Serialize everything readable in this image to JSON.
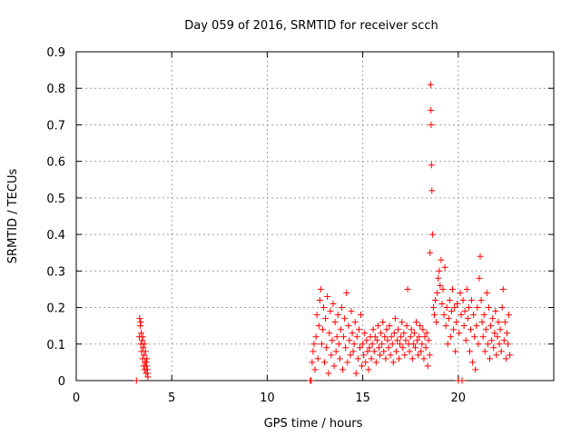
{
  "chart_data": {
    "type": "scatter",
    "title": "Day 059 of 2016, SRMTID for receiver scch",
    "xlabel": "GPS time / hours",
    "ylabel": "SRMTID / TECUs",
    "xlim": [
      0,
      25
    ],
    "ylim": [
      0,
      0.9
    ],
    "xticks": [
      "0",
      "5",
      "10",
      "15",
      "20"
    ],
    "yticks": [
      "0",
      "0.1",
      "0.2",
      "0.3",
      "0.4",
      "0.5",
      "0.6",
      "0.7",
      "0.8",
      "0.9"
    ],
    "grid": true,
    "marker": "+",
    "series_color": "#ff0000",
    "series": [
      {
        "name": "SRMTID",
        "x": [
          3.15,
          3.3,
          3.32,
          3.35,
          3.38,
          3.4,
          3.42,
          3.45,
          3.47,
          3.5,
          3.52,
          3.55,
          3.58,
          3.6,
          3.62,
          3.65,
          3.68,
          3.7,
          3.72,
          3.75,
          3.38,
          3.48,
          3.57,
          3.66,
          3.73,
          12.25,
          12.3,
          12.35,
          12.4,
          12.45,
          12.5,
          12.55,
          12.6,
          12.65,
          12.7,
          12.75,
          12.8,
          12.85,
          12.9,
          12.95,
          13.0,
          13.05,
          13.1,
          13.15,
          13.2,
          13.25,
          13.3,
          13.35,
          13.4,
          13.45,
          13.5,
          13.55,
          13.6,
          13.65,
          13.7,
          13.75,
          13.8,
          13.85,
          13.9,
          13.95,
          14.0,
          14.05,
          14.1,
          14.15,
          14.2,
          14.25,
          14.3,
          14.35,
          14.4,
          14.45,
          14.5,
          14.55,
          14.6,
          14.65,
          14.7,
          14.75,
          14.8,
          14.85,
          14.9,
          14.95,
          15.0,
          15.05,
          15.1,
          15.15,
          15.2,
          15.25,
          15.3,
          15.35,
          15.4,
          15.45,
          15.5,
          15.55,
          15.6,
          15.65,
          15.7,
          15.75,
          15.8,
          15.85,
          15.9,
          15.95,
          16.0,
          16.05,
          16.1,
          16.15,
          16.2,
          16.25,
          16.3,
          16.35,
          16.4,
          16.45,
          16.5,
          16.55,
          16.6,
          16.65,
          16.7,
          16.75,
          16.8,
          16.85,
          16.9,
          16.95,
          17.0,
          17.05,
          17.1,
          17.15,
          17.2,
          17.25,
          17.3,
          17.35,
          17.4,
          17.45,
          17.5,
          17.55,
          17.6,
          17.65,
          17.7,
          17.75,
          17.8,
          17.85,
          17.9,
          17.95,
          18.0,
          18.05,
          18.1,
          18.15,
          18.2,
          18.25,
          18.3,
          18.35,
          18.4,
          18.45,
          18.5,
          18.52,
          18.55,
          18.57,
          18.58,
          18.6,
          18.62,
          18.65,
          18.7,
          18.75,
          18.8,
          18.85,
          18.9,
          18.95,
          19.0,
          19.05,
          19.1,
          19.15,
          19.2,
          19.25,
          19.3,
          19.35,
          19.4,
          19.45,
          19.5,
          19.55,
          19.6,
          19.65,
          19.7,
          19.75,
          19.8,
          19.85,
          19.9,
          19.95,
          20.0,
          20.05,
          20.1,
          20.15,
          20.2,
          20.25,
          20.3,
          20.35,
          20.4,
          20.45,
          20.5,
          20.55,
          20.6,
          20.65,
          20.7,
          20.75,
          20.8,
          20.85,
          20.9,
          20.95,
          21.0,
          21.05,
          21.1,
          21.15,
          21.2,
          21.25,
          21.3,
          21.35,
          21.4,
          21.45,
          21.5,
          21.55,
          21.6,
          21.65,
          21.7,
          21.75,
          21.8,
          21.85,
          21.9,
          21.95,
          22.0,
          22.05,
          22.1,
          22.15,
          22.2,
          22.25,
          22.3,
          22.35,
          22.4,
          22.45,
          22.5,
          22.55,
          22.6,
          22.65,
          22.7
        ],
        "y": [
          0.0,
          0.12,
          0.17,
          0.15,
          0.1,
          0.13,
          0.08,
          0.11,
          0.06,
          0.09,
          0.04,
          0.07,
          0.03,
          0.05,
          0.08,
          0.02,
          0.04,
          0.06,
          0.03,
          0.01,
          0.16,
          0.12,
          0.1,
          0.05,
          0.02,
          0.0,
          0.0,
          0.05,
          0.08,
          0.1,
          0.03,
          0.12,
          0.18,
          0.06,
          0.15,
          0.22,
          0.25,
          0.1,
          0.14,
          0.2,
          0.05,
          0.17,
          0.09,
          0.23,
          0.02,
          0.13,
          0.19,
          0.07,
          0.11,
          0.21,
          0.04,
          0.16,
          0.08,
          0.12,
          0.18,
          0.1,
          0.06,
          0.14,
          0.2,
          0.03,
          0.12,
          0.17,
          0.09,
          0.24,
          0.05,
          0.15,
          0.11,
          0.07,
          0.19,
          0.13,
          0.08,
          0.1,
          0.16,
          0.02,
          0.12,
          0.06,
          0.14,
          0.09,
          0.18,
          0.04,
          0.1,
          0.07,
          0.13,
          0.05,
          0.11,
          0.08,
          0.03,
          0.09,
          0.12,
          0.06,
          0.1,
          0.14,
          0.08,
          0.12,
          0.05,
          0.11,
          0.15,
          0.09,
          0.07,
          0.13,
          0.1,
          0.16,
          0.08,
          0.12,
          0.06,
          0.14,
          0.11,
          0.09,
          0.15,
          0.07,
          0.12,
          0.1,
          0.05,
          0.13,
          0.17,
          0.08,
          0.11,
          0.14,
          0.06,
          0.1,
          0.12,
          0.16,
          0.09,
          0.13,
          0.07,
          0.11,
          0.15,
          0.25,
          0.1,
          0.08,
          0.12,
          0.14,
          0.06,
          0.1,
          0.13,
          0.09,
          0.16,
          0.11,
          0.07,
          0.12,
          0.15,
          0.08,
          0.1,
          0.14,
          0.06,
          0.12,
          0.09,
          0.13,
          0.04,
          0.11,
          0.07,
          0.35,
          0.81,
          0.74,
          0.7,
          0.59,
          0.52,
          0.4,
          0.2,
          0.18,
          0.22,
          0.16,
          0.24,
          0.28,
          0.3,
          0.26,
          0.33,
          0.21,
          0.25,
          0.18,
          0.31,
          0.15,
          0.2,
          0.1,
          0.17,
          0.22,
          0.12,
          0.19,
          0.25,
          0.14,
          0.2,
          0.08,
          0.16,
          0.21,
          0.0,
          0.13,
          0.24,
          0.18,
          0.0,
          0.22,
          0.15,
          0.19,
          0.11,
          0.25,
          0.17,
          0.2,
          0.08,
          0.14,
          0.22,
          0.05,
          0.18,
          0.12,
          0.03,
          0.15,
          0.2,
          0.1,
          0.28,
          0.34,
          0.22,
          0.16,
          0.12,
          0.18,
          0.08,
          0.14,
          0.24,
          0.1,
          0.2,
          0.06,
          0.15,
          0.11,
          0.17,
          0.09,
          0.13,
          0.19,
          0.07,
          0.12,
          0.16,
          0.1,
          0.14,
          0.08,
          0.2,
          0.25,
          0.11,
          0.16,
          0.06,
          0.13,
          0.1,
          0.18,
          0.07
        ]
      }
    ]
  }
}
